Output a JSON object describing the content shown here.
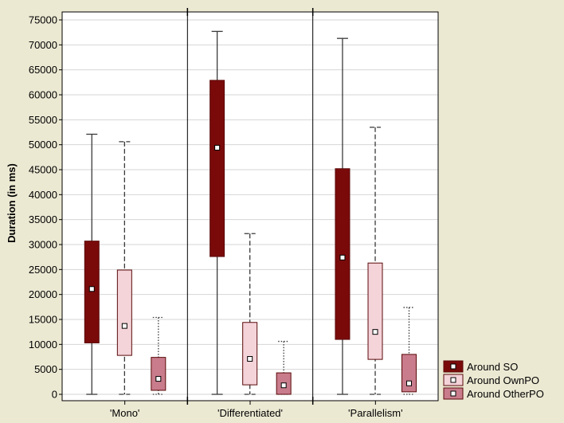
{
  "chart_data": {
    "type": "box",
    "ylabel": "Duration (in ms)",
    "ylim": [
      0,
      75000
    ],
    "yticks": [
      0,
      5000,
      10000,
      15000,
      20000,
      25000,
      30000,
      35000,
      40000,
      45000,
      50000,
      55000,
      60000,
      65000,
      70000,
      75000
    ],
    "grid": true,
    "legend_position": "bottom-right",
    "panels": [
      "'Mono'",
      "'Differentiated'",
      "'Parallelism'"
    ],
    "series": [
      {
        "name": "Around SO",
        "fill": "#7a0a0a",
        "whisker_style": "solid",
        "boxes": [
          {
            "panel": "'Mono'",
            "min": 0,
            "q1": 10300,
            "median": 21100,
            "q3": 30700,
            "max": 52100
          },
          {
            "panel": "'Differentiated'",
            "min": 0,
            "q1": 27600,
            "median": 49400,
            "q3": 62900,
            "max": 72700
          },
          {
            "panel": "'Parallelism'",
            "min": 0,
            "q1": 11000,
            "median": 27400,
            "q3": 45200,
            "max": 71300
          }
        ]
      },
      {
        "name": "Around OwnPO",
        "fill": "#f4d3d9",
        "whisker_style": "dashed",
        "boxes": [
          {
            "panel": "'Mono'",
            "min": 0,
            "q1": 7800,
            "median": 13700,
            "q3": 24900,
            "max": 50600
          },
          {
            "panel": "'Differentiated'",
            "min": 0,
            "q1": 1900,
            "median": 7100,
            "q3": 14400,
            "max": 32200
          },
          {
            "panel": "'Parallelism'",
            "min": 0,
            "q1": 7000,
            "median": 12500,
            "q3": 26300,
            "max": 53500
          }
        ]
      },
      {
        "name": "Around OtherPO",
        "fill": "#c97c8c",
        "whisker_style": "dotted",
        "boxes": [
          {
            "panel": "'Mono'",
            "min": 0,
            "q1": 800,
            "median": 3100,
            "q3": 7400,
            "max": 15400
          },
          {
            "panel": "'Differentiated'",
            "min": 0,
            "q1": 0,
            "median": 1800,
            "q3": 4300,
            "max": 10600
          },
          {
            "panel": "'Parallelism'",
            "min": 0,
            "q1": 500,
            "median": 2200,
            "q3": 8000,
            "max": 17400
          }
        ]
      }
    ]
  }
}
